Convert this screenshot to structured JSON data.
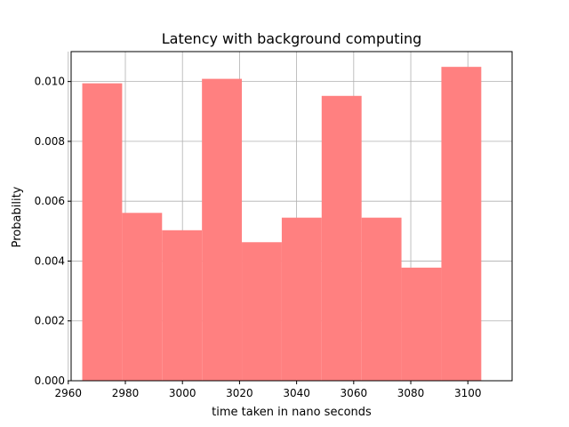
{
  "chart_data": {
    "type": "bar",
    "title": "Latency with background computing",
    "xlabel": "time taken in nano seconds",
    "ylabel": "Probability",
    "xlim": [
      2961,
      3115.5
    ],
    "ylim": [
      0,
      0.011
    ],
    "xticks": [
      2960,
      2980,
      3000,
      3020,
      3040,
      3060,
      3080,
      3100
    ],
    "yticks": [
      0.0,
      0.002,
      0.004,
      0.006,
      0.008,
      0.01
    ],
    "ytick_labels": [
      "0.000",
      "0.002",
      "0.004",
      "0.006",
      "0.008",
      "0.010"
    ],
    "bin_edges": [
      2964.9,
      2978.88,
      2992.86,
      3006.84,
      3020.82,
      3034.8,
      3048.78,
      3062.76,
      3076.74,
      3090.72,
      3104.7
    ],
    "values": [
      0.00994,
      0.00561,
      0.00503,
      0.01009,
      0.00463,
      0.00545,
      0.00952,
      0.00545,
      0.00378,
      0.01049
    ],
    "grid": true,
    "bar_color": "#ff8080"
  }
}
